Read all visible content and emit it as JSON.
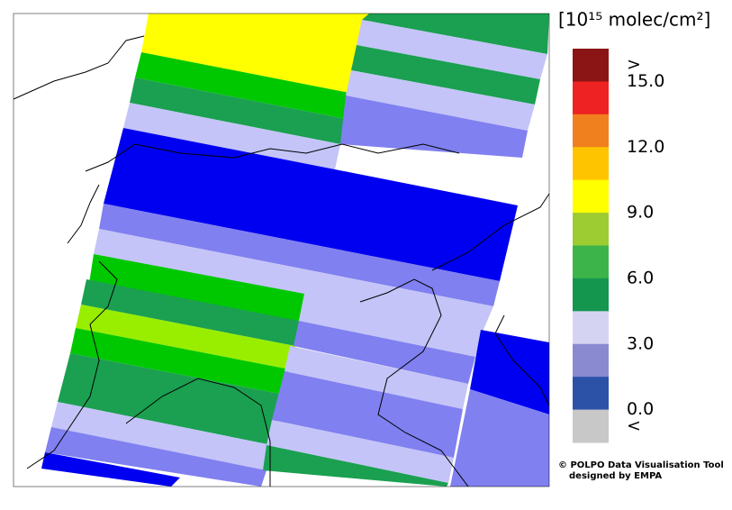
{
  "colorbar": {
    "title": "[10¹⁵ molec/cm²]",
    "vlim": [
      -1.5,
      16.5
    ],
    "colors": [
      "#8b1414",
      "#ee2222",
      "#f0801e",
      "#ffc400",
      "#ffff00",
      "#9ccc32",
      "#3cb44a",
      "#14964e",
      "#d4d4f2",
      "#8a8ad0",
      "#2c52a8",
      "#c8c8c8"
    ],
    "over_label": ">",
    "under_label": "<",
    "ticks": [
      {
        "value": 15,
        "label": "15.0"
      },
      {
        "value": 12,
        "label": "12.0"
      },
      {
        "value": 9,
        "label": "9.0"
      },
      {
        "value": 6,
        "label": "6.0"
      },
      {
        "value": 3,
        "label": "3.0"
      },
      {
        "value": 0,
        "label": "0.0"
      }
    ]
  },
  "credit": {
    "line1": "© POLPO Data Visualisation Tool",
    "line2": "designed by EMPA"
  }
}
